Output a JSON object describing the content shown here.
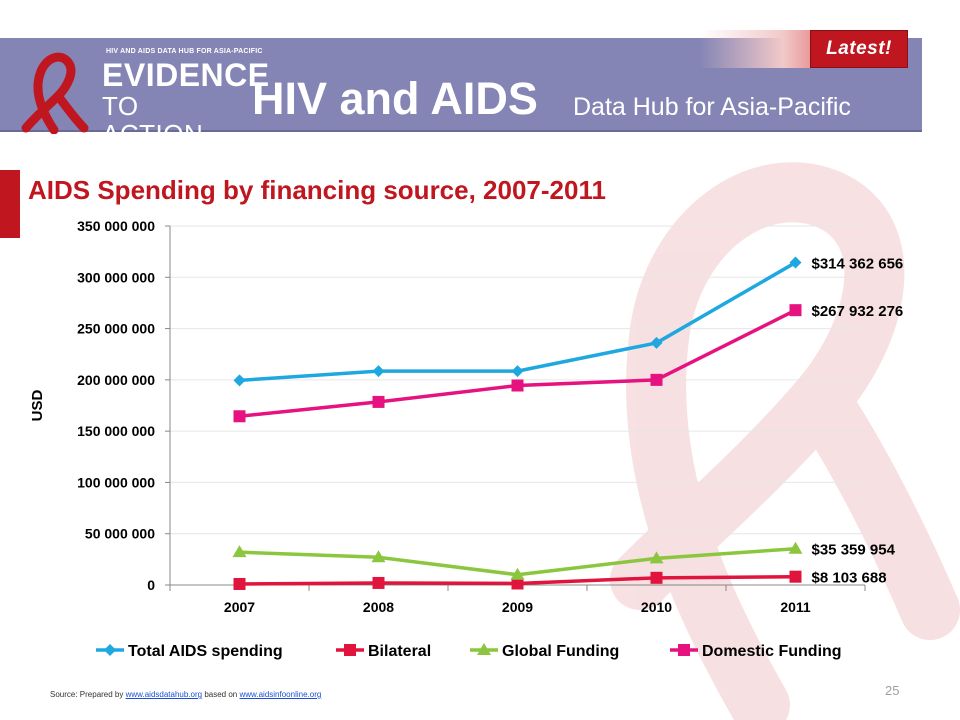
{
  "header": {
    "logo_small_text": "HIV AND AIDS DATA HUB FOR ASIA-PACIFIC",
    "logo_line1": "EVIDENCE",
    "logo_line2": "TO ACTION",
    "title": "HIV and AIDS",
    "subtitle": "Data Hub for Asia-Pacific",
    "badge": "Latest!"
  },
  "slide_title": "AIDS Spending by financing source, 2007-2011",
  "footer": {
    "source_prefix": "Source: Prepared by ",
    "source_link1": "www.aidsdatahub.org",
    "source_middle": "  based on ",
    "source_link2": "www.aidsinfoonline.org",
    "page_number": "25"
  },
  "colors": {
    "brand_red": "#c0161f",
    "header_band": "#8585b5"
  },
  "chart_data": {
    "type": "line",
    "title": "",
    "xlabel": "",
    "ylabel": "USD",
    "ylim": [
      0,
      350000000
    ],
    "yticks": [
      0,
      50000000,
      100000000,
      150000000,
      200000000,
      250000000,
      300000000,
      350000000
    ],
    "ytick_labels": [
      "0",
      "50 000 000",
      "100 000 000",
      "150 000 000",
      "200 000 000",
      "250 000 000",
      "300 000 000",
      "350 000 000"
    ],
    "categories": [
      "2007",
      "2008",
      "2009",
      "2010",
      "2011"
    ],
    "grid": true,
    "legend_position": "bottom",
    "series": [
      {
        "name": "Total AIDS spending",
        "values": [
          199500000,
          208500000,
          208500000,
          236000000,
          314362656
        ],
        "color": "#1fa8e0",
        "marker": "diamond",
        "end_label": "$314 362 656"
      },
      {
        "name": "Bilateral",
        "values": [
          1000000,
          2000000,
          1500000,
          7000000,
          8103688
        ],
        "color": "#e0143c",
        "marker": "square",
        "end_label": "$8 103 688"
      },
      {
        "name": "Global Funding",
        "values": [
          32000000,
          27000000,
          10000000,
          26000000,
          35359954
        ],
        "color": "#8cc63f",
        "marker": "triangle",
        "end_label": "$35 359 954"
      },
      {
        "name": "Domestic Funding",
        "values": [
          164500000,
          178500000,
          194500000,
          200000000,
          267932276
        ],
        "color": "#e5127f",
        "marker": "square",
        "end_label": "$267 932 276"
      }
    ]
  }
}
